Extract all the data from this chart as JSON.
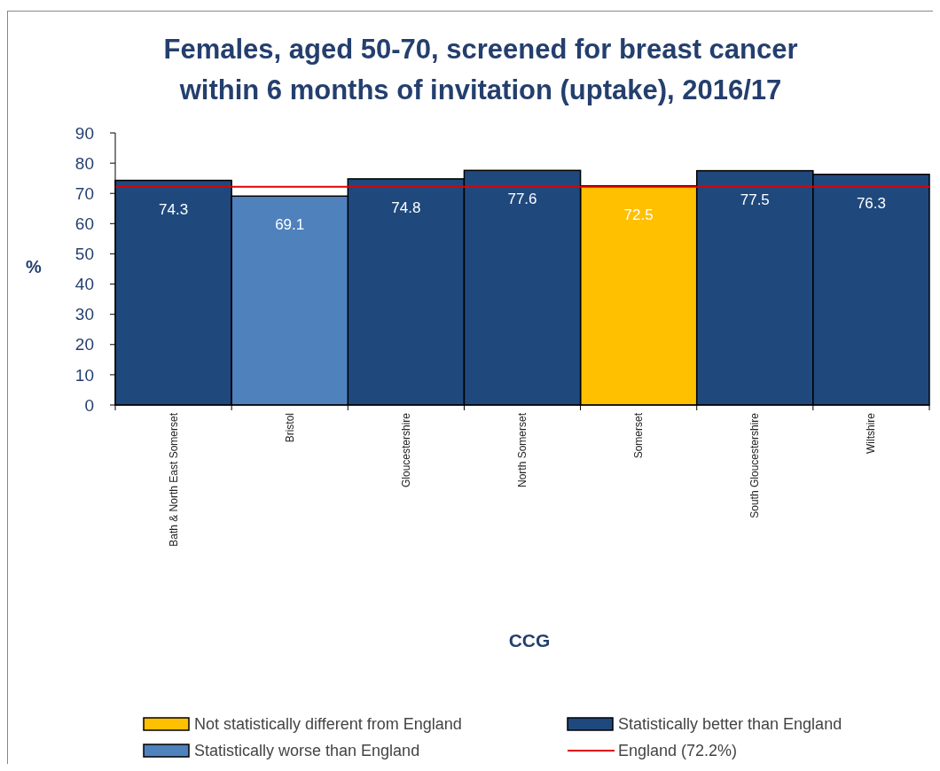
{
  "chart_data": {
    "type": "bar",
    "title": "Females, aged 50-70, screened for breast cancer within 6 months of invitation (uptake), 2016/17",
    "xlabel": "CCG",
    "ylabel": "%",
    "categories": [
      "Bath & North East Somerset",
      "Bristol",
      "Gloucestershire",
      "North Somerset",
      "Somerset",
      "South Gloucestershire",
      "Wiltshire"
    ],
    "stacked": true,
    "series": [
      {
        "name": "Not statistically different from England",
        "color": "#ffc000",
        "values": [
          null,
          null,
          null,
          null,
          72.5,
          null,
          null
        ]
      },
      {
        "name": "Statistically better than England",
        "color": "#1f497d",
        "values": [
          74.3,
          null,
          74.8,
          77.6,
          null,
          77.5,
          76.3
        ]
      },
      {
        "name": "Statistically worse than England",
        "color": "#4f81bd",
        "values": [
          null,
          69.1,
          null,
          null,
          null,
          null,
          null
        ]
      }
    ],
    "ref_lines": [
      {
        "axis": "y",
        "value": 72.2,
        "label": "England (72.2%)",
        "color": "#e00000"
      }
    ],
    "ylim": [
      0,
      90
    ],
    "yticks": [
      0,
      10,
      20,
      30,
      40,
      50,
      60,
      70,
      80,
      90
    ],
    "data_labels": true,
    "legend": "bottom",
    "grid": false
  }
}
